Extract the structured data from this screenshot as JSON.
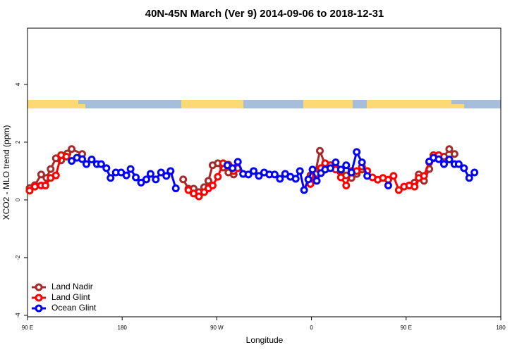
{
  "chart_data": {
    "type": "line",
    "title": "40N-45N March (Ver 9)   2014-09-06 to 2018-12-31",
    "x_label": "Longitude",
    "y_label": "XCO2 - MLO trend (ppm)",
    "xlim": [
      90,
      540
    ],
    "xticks": [
      {
        "value": 90,
        "label": "90 E"
      },
      180,
      {
        "value": 270,
        "label": "90 W"
      },
      {
        "value": 360,
        "label": "0"
      },
      {
        "value": 450,
        "label": "90 E"
      },
      {
        "value": 540,
        "label": "180"
      }
    ],
    "ylim": [
      -4.05,
      5.95
    ],
    "yticks": [
      -4,
      -2,
      0,
      2,
      4
    ],
    "grid": false,
    "legend": "bottom-left",
    "series": [
      {
        "name": "Land Nadir",
        "color": "#a52a2a",
        "x": [
          92,
          97,
          103,
          108,
          112,
          117,
          122,
          128,
          132,
          142,
          190,
          238,
          243,
          248,
          253,
          258,
          262,
          266,
          271,
          276,
          281,
          286,
          320,
          359,
          364,
          368,
          373,
          378,
          383,
          388,
          393,
          398,
          403,
          408,
          413,
          440,
          453,
          458,
          462,
          467,
          472,
          476,
          481,
          486,
          491,
          496
        ],
        "values": [
          0.41,
          0.51,
          0.88,
          0.76,
          1.07,
          1.44,
          1.37,
          1.61,
          1.76,
          1.59,
          null,
          0.71,
          0.39,
          0.39,
          0.27,
          0.44,
          0.66,
          1.2,
          1.27,
          1.12,
          0.95,
          0.88,
          null,
          0.85,
          1.0,
          1.7,
          1.22,
          1.2,
          1.1,
          1.0,
          0.85,
          0.76,
          0.9,
          1.05,
          1.0,
          null,
          0.5,
          0.6,
          0.88,
          0.66,
          1.07,
          1.44,
          1.5,
          1.5,
          1.76,
          1.59
        ]
      },
      {
        "name": "Land Glint",
        "color": "#ff0000",
        "x": [
          92,
          97,
          103,
          107,
          112,
          117,
          122,
          127,
          190,
          243,
          248,
          253,
          258,
          262,
          266,
          271,
          276,
          281,
          286,
          290,
          320,
          359,
          364,
          369,
          373,
          378,
          383,
          388,
          393,
          398,
          403,
          408,
          413,
          418,
          423,
          428,
          433,
          438,
          443,
          448,
          453,
          458,
          462,
          467,
          472,
          476,
          481
        ],
        "values": [
          0.32,
          0.46,
          0.5,
          0.5,
          0.76,
          0.85,
          1.55,
          1.5,
          null,
          0.34,
          0.22,
          0.12,
          0.27,
          0.4,
          0.5,
          0.8,
          1.27,
          1.22,
          1.0,
          1.1,
          null,
          0.55,
          0.9,
          1.1,
          1.27,
          1.2,
          1.05,
          0.78,
          0.5,
          1.0,
          1.0,
          1.15,
          1.0,
          0.78,
          0.7,
          0.76,
          0.7,
          0.83,
          0.34,
          0.46,
          0.5,
          0.46,
          0.76,
          0.83,
          1.3,
          1.55,
          1.55
        ]
      },
      {
        "name": "Ocean Glint",
        "color": "#0000ff",
        "x": [
          132,
          137,
          142,
          146,
          151,
          156,
          160,
          165,
          169,
          174,
          179,
          184,
          188,
          193,
          198,
          203,
          207,
          212,
          217,
          222,
          226,
          231,
          255,
          280,
          285,
          290,
          295,
          300,
          305,
          310,
          315,
          320,
          325,
          330,
          335,
          340,
          345,
          349,
          353,
          357,
          361,
          365,
          369,
          373,
          378,
          383,
          388,
          393,
          398,
          403,
          408,
          413,
          423,
          433,
          450,
          472,
          476,
          481,
          486,
          491,
          496,
          500,
          505,
          510,
          515
        ],
        "values": [
          1.35,
          1.46,
          1.41,
          1.24,
          1.4,
          1.24,
          1.24,
          1.1,
          0.76,
          0.95,
          0.95,
          0.85,
          1.07,
          0.78,
          0.6,
          0.71,
          0.9,
          0.71,
          0.95,
          0.83,
          1.0,
          0.4,
          null,
          1.2,
          1.1,
          1.32,
          0.9,
          0.88,
          1.0,
          0.83,
          0.95,
          0.88,
          0.88,
          0.73,
          0.9,
          0.8,
          0.73,
          1.0,
          0.34,
          0.71,
          1.05,
          0.66,
          0.93,
          1.05,
          1.1,
          1.3,
          1.05,
          1.2,
          0.95,
          1.66,
          1.3,
          0.83,
          null,
          0.5,
          null,
          1.33,
          1.46,
          1.41,
          1.24,
          1.4,
          1.24,
          1.24,
          1.1,
          0.76,
          0.95
        ]
      }
    ]
  }
}
